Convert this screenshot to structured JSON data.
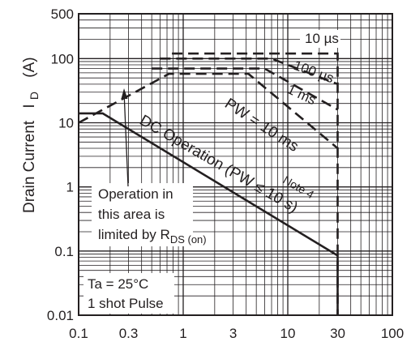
{
  "chart_data": {
    "type": "line",
    "x_scale": "log",
    "y_scale": "log",
    "xlim": [
      0.1,
      100
    ],
    "ylim": [
      0.01,
      500
    ],
    "grid": true,
    "ylabel": "Drain Current I_D (A)",
    "ylabel_parts": {
      "main": "Drain Current",
      "symbol": "I",
      "subscript": "D",
      "unit": "(A)"
    },
    "x_ticks": [
      {
        "value": 0.1,
        "label": "0.1"
      },
      {
        "value": 0.3,
        "label": "0.3"
      },
      {
        "value": 1,
        "label": "1"
      },
      {
        "value": 3,
        "label": "3"
      },
      {
        "value": 10,
        "label": "10"
      },
      {
        "value": 30,
        "label": "30"
      },
      {
        "value": 100,
        "label": "100"
      }
    ],
    "y_ticks": [
      {
        "value": 500,
        "label": "500"
      },
      {
        "value": 100,
        "label": "100"
      },
      {
        "value": 10,
        "label": "10"
      },
      {
        "value": 1,
        "label": "1"
      },
      {
        "value": 0.1,
        "label": "0.1"
      },
      {
        "value": 0.01,
        "label": "0.01"
      }
    ],
    "series": [
      {
        "name": "DC Operation",
        "style": "solid",
        "x": [
          0.1,
          0.17,
          30,
          30
        ],
        "y": [
          14,
          14,
          0.085,
          0.01
        ]
      },
      {
        "name": "10 µs",
        "style": "dashed",
        "x": [
          0.78,
          30,
          30
        ],
        "y": [
          120,
          120,
          0.01
        ]
      },
      {
        "name": "100 µs",
        "style": "dashed",
        "x": [
          0.6,
          7,
          30
        ],
        "y": [
          100,
          100,
          40
        ]
      },
      {
        "name": "1 ms",
        "style": "dashed",
        "x": [
          0.5,
          6,
          30
        ],
        "y": [
          70,
          70,
          16
        ]
      },
      {
        "name": "PW = 10 ms",
        "style": "dashed",
        "x": [
          0.1,
          0.73,
          4.2,
          30
        ],
        "y": [
          10,
          58,
          58,
          4
        ]
      }
    ],
    "annotations": {
      "t10us": "10 µs",
      "t100us": "100 µs",
      "t1ms": "1 ms",
      "pw10": "PW = 10 ms",
      "dc": "DC Operation (PW ≤ 10 s)",
      "note": "Note 4",
      "limit1": "Operation in",
      "limit2": "this area is",
      "limit3": "limited by R",
      "limit3_sub": "DS (on)",
      "ta": "Ta = 25°C",
      "pulse": "1 shot Pulse"
    }
  }
}
